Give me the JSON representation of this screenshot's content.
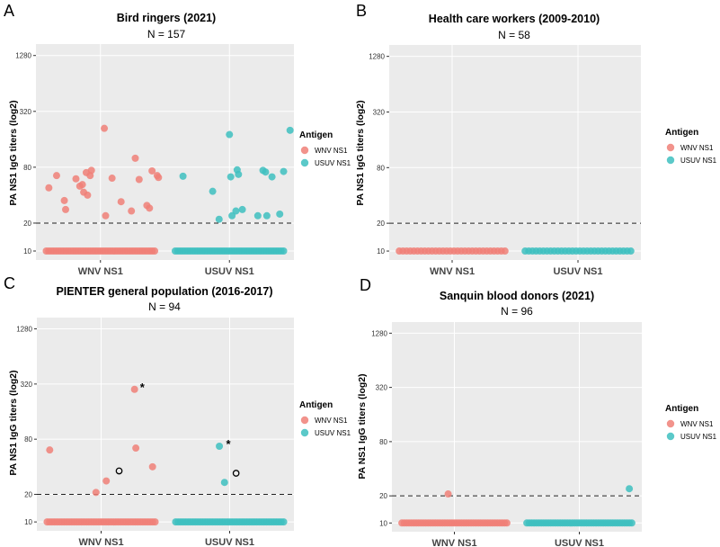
{
  "figure": {
    "legend_title": "Antigen",
    "series_names": [
      "WNV NS1",
      "USUV NS1"
    ],
    "colors": {
      "wnv": "#F08078",
      "usuv": "#3EC0C0",
      "panel_bg": "#EBEBEB",
      "grid": "#FFFFFF",
      "threshold": "#222222"
    }
  },
  "chart_data": [
    {
      "panel": "A",
      "type": "scatter",
      "title": "Bird ringers (2021)",
      "subtitle": "N = 157",
      "xlabel": "",
      "ylabel": "PA NS1 IgG titers (log2)",
      "y_scale": "log2",
      "yticks": [
        10,
        20,
        80,
        320,
        1280
      ],
      "ylim": [
        8,
        1700
      ],
      "categories": [
        "WNV NS1",
        "USUV NS1"
      ],
      "threshold": 20,
      "grid": true,
      "legend": "right",
      "series": [
        {
          "name": "WNV NS1",
          "x_category": "WNV NS1",
          "baseline_value": 10,
          "baseline_count": 45,
          "points": [
            {
              "dx": -0.4,
              "y": 48
            },
            {
              "dx": -0.34,
              "y": 65
            },
            {
              "dx": -0.28,
              "y": 35
            },
            {
              "dx": -0.27,
              "y": 28
            },
            {
              "dx": -0.19,
              "y": 60
            },
            {
              "dx": -0.16,
              "y": 50
            },
            {
              "dx": -0.14,
              "y": 52
            },
            {
              "dx": -0.13,
              "y": 43
            },
            {
              "dx": -0.11,
              "y": 70
            },
            {
              "dx": -0.1,
              "y": 40
            },
            {
              "dx": -0.08,
              "y": 65
            },
            {
              "dx": -0.07,
              "y": 74
            },
            {
              "dx": 0.04,
              "y": 24
            },
            {
              "dx": 0.03,
              "y": 210
            },
            {
              "dx": 0.09,
              "y": 61
            },
            {
              "dx": 0.16,
              "y": 34
            },
            {
              "dx": 0.24,
              "y": 27
            },
            {
              "dx": 0.27,
              "y": 100
            },
            {
              "dx": 0.3,
              "y": 59
            },
            {
              "dx": 0.36,
              "y": 31
            },
            {
              "dx": 0.38,
              "y": 29
            },
            {
              "dx": 0.4,
              "y": 73
            },
            {
              "dx": 0.44,
              "y": 65
            },
            {
              "dx": 0.45,
              "y": 62
            }
          ]
        },
        {
          "name": "USUV NS1",
          "x_category": "USUV NS1",
          "baseline_value": 10,
          "baseline_count": 45,
          "points": [
            {
              "dx": -0.36,
              "y": 64
            },
            {
              "dx": -0.13,
              "y": 44
            },
            {
              "dx": -0.08,
              "y": 22
            },
            {
              "dx": 0.0,
              "y": 180
            },
            {
              "dx": 0.01,
              "y": 63
            },
            {
              "dx": 0.02,
              "y": 24
            },
            {
              "dx": 0.05,
              "y": 27
            },
            {
              "dx": 0.06,
              "y": 75
            },
            {
              "dx": 0.07,
              "y": 67
            },
            {
              "dx": 0.1,
              "y": 28
            },
            {
              "dx": 0.22,
              "y": 24
            },
            {
              "dx": 0.26,
              "y": 74
            },
            {
              "dx": 0.28,
              "y": 71
            },
            {
              "dx": 0.29,
              "y": 24
            },
            {
              "dx": 0.33,
              "y": 63
            },
            {
              "dx": 0.39,
              "y": 25
            },
            {
              "dx": 0.42,
              "y": 72
            },
            {
              "dx": 0.47,
              "y": 200
            }
          ]
        }
      ],
      "markers": []
    },
    {
      "panel": "B",
      "type": "scatter",
      "title": "Health care workers (2009-2010)",
      "subtitle": "N = 58",
      "xlabel": "",
      "ylabel": "PA NS1 IgG titers (log2)",
      "y_scale": "log2",
      "yticks": [
        10,
        20,
        80,
        320,
        1280
      ],
      "ylim": [
        8,
        1700
      ],
      "categories": [
        "WNV NS1",
        "USUV NS1"
      ],
      "threshold": 20,
      "grid": true,
      "legend": "right",
      "series": [
        {
          "name": "WNV NS1",
          "x_category": "WNV NS1",
          "baseline_value": 10,
          "baseline_count": 30,
          "points": []
        },
        {
          "name": "USUV NS1",
          "x_category": "USUV NS1",
          "baseline_value": 10,
          "baseline_count": 30,
          "points": []
        }
      ],
      "markers": []
    },
    {
      "panel": "C",
      "type": "scatter",
      "title": "PIENTER general population (2016-2017)",
      "subtitle": "N = 94",
      "xlabel": "",
      "ylabel": "PA NS1 IgG titers (log2)",
      "y_scale": "log2",
      "yticks": [
        10,
        20,
        80,
        320,
        1280
      ],
      "ylim": [
        8,
        1700
      ],
      "categories": [
        "WNV NS1",
        "USUV NS1"
      ],
      "threshold": 20,
      "grid": true,
      "legend": "right",
      "series": [
        {
          "name": "WNV NS1",
          "x_category": "WNV NS1",
          "baseline_value": 10,
          "baseline_count": 45,
          "points": [
            {
              "dx": -0.4,
              "y": 61
            },
            {
              "dx": -0.04,
              "y": 21
            },
            {
              "dx": 0.04,
              "y": 28
            },
            {
              "dx": 0.26,
              "y": 280
            },
            {
              "dx": 0.27,
              "y": 64
            },
            {
              "dx": 0.4,
              "y": 40
            }
          ]
        },
        {
          "name": "USUV NS1",
          "x_category": "USUV NS1",
          "baseline_value": 10,
          "baseline_count": 45,
          "points": [
            {
              "dx": -0.08,
              "y": 67
            },
            {
              "dx": -0.04,
              "y": 27
            }
          ]
        }
      ],
      "markers": [
        {
          "type": "asterisk",
          "label": "*",
          "category": "WNV NS1",
          "dx": 0.32,
          "y": 305
        },
        {
          "type": "asterisk",
          "label": "*",
          "category": "USUV NS1",
          "dx": -0.01,
          "y": 73
        },
        {
          "type": "open-circle",
          "category": "WNV NS1",
          "dx": 0.14,
          "y": 36
        },
        {
          "type": "open-circle",
          "category": "USUV NS1",
          "dx": 0.05,
          "y": 34
        }
      ]
    },
    {
      "panel": "D",
      "type": "scatter",
      "title": "Sanquin blood donors (2021)",
      "subtitle": "N = 96",
      "xlabel": "",
      "ylabel": "PA NS1 IgG titers (log2)",
      "y_scale": "log2",
      "yticks": [
        10,
        20,
        80,
        320,
        1280
      ],
      "ylim": [
        8,
        1700
      ],
      "categories": [
        "WNV NS1",
        "USUV NS1"
      ],
      "threshold": 20,
      "grid": true,
      "legend": "right",
      "series": [
        {
          "name": "WNV NS1",
          "x_category": "WNV NS1",
          "baseline_value": 10,
          "baseline_count": 45,
          "points": [
            {
              "dx": -0.05,
              "y": 21
            }
          ]
        },
        {
          "name": "USUV NS1",
          "x_category": "USUV NS1",
          "baseline_value": 10,
          "baseline_count": 45,
          "points": [
            {
              "dx": 0.4,
              "y": 24
            }
          ]
        }
      ],
      "markers": []
    }
  ]
}
